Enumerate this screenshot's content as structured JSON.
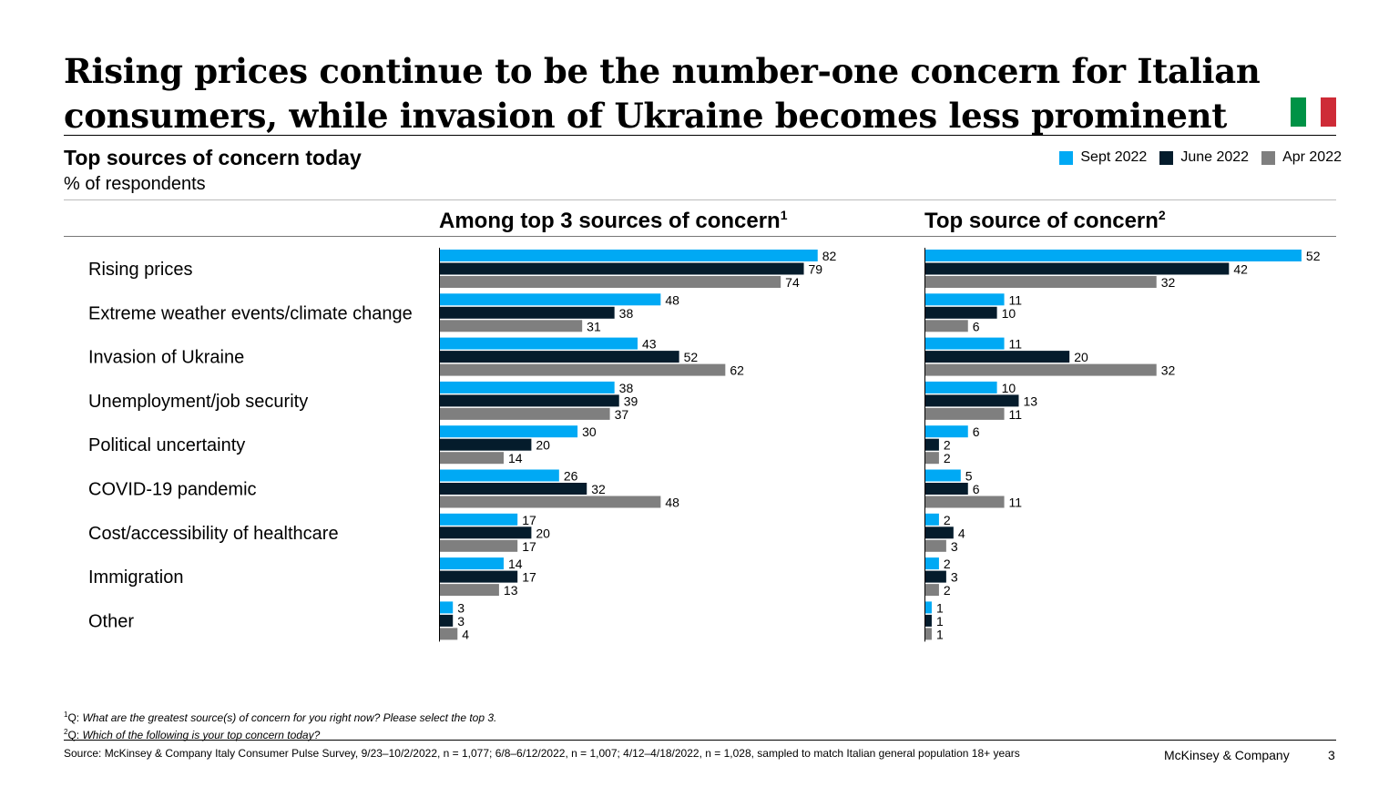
{
  "header": {
    "title": "Rising prices continue to be the number-one concern for Italian consumers, while invasion of Ukraine becomes less prominent",
    "subtitle": "Top sources of concern today",
    "unit": "% of respondents"
  },
  "flag": {
    "icon": "italy-flag-icon",
    "colors": [
      "#009246",
      "#ffffff",
      "#ce2b37"
    ]
  },
  "colors": {
    "sept": "#00a9f4",
    "june": "#051c2c",
    "apr": "#7f7f7f"
  },
  "legend": [
    {
      "label": "Sept 2022",
      "color": "#00a9f4"
    },
    {
      "label": "June 2022",
      "color": "#051c2c"
    },
    {
      "label": "Apr 2022",
      "color": "#7f7f7f"
    }
  ],
  "chart_data": {
    "type": "bar",
    "orientation": "horizontal",
    "categories": [
      "Rising prices",
      "Extreme weather events/climate change",
      "Invasion of Ukraine",
      "Unemployment/job security",
      "Political uncertainty",
      "COVID-19 pandemic",
      "Cost/accessibility of healthcare",
      "Immigration",
      "Other"
    ],
    "panels": [
      {
        "title": "Among top 3 sources of concern",
        "footnote_mark": "1",
        "series": [
          {
            "name": "Sept 2022",
            "values": [
              82,
              48,
              43,
              38,
              30,
              26,
              17,
              14,
              3
            ]
          },
          {
            "name": "June 2022",
            "values": [
              79,
              38,
              52,
              39,
              20,
              32,
              20,
              17,
              3
            ]
          },
          {
            "name": "Apr 2022",
            "values": [
              74,
              31,
              62,
              37,
              14,
              48,
              17,
              13,
              4
            ]
          }
        ]
      },
      {
        "title": "Top source of concern",
        "footnote_mark": "2",
        "series": [
          {
            "name": "Sept 2022",
            "values": [
              52,
              11,
              11,
              10,
              6,
              5,
              2,
              2,
              1
            ]
          },
          {
            "name": "June 2022",
            "values": [
              42,
              10,
              20,
              13,
              2,
              6,
              4,
              3,
              1
            ]
          },
          {
            "name": "Apr 2022",
            "values": [
              32,
              6,
              32,
              11,
              2,
              11,
              3,
              2,
              1
            ]
          }
        ]
      }
    ]
  },
  "footnotes": [
    {
      "mark": "1",
      "prefix": "Q: ",
      "text": "What are the greatest source(s) of concern for you right now? Please select the top 3."
    },
    {
      "mark": "2",
      "prefix": "Q: ",
      "text": "Which of the following is your top concern today?"
    }
  ],
  "source": "Source: McKinsey & Company Italy Consumer Pulse Survey, 9/23–10/2/2022, n = 1,077; 6/8–6/12/2022, n = 1,007; 4/12–4/18/2022, n = 1,028, sampled to match Italian general population 18+ years",
  "brand": "McKinsey & Company",
  "page_number": "3"
}
